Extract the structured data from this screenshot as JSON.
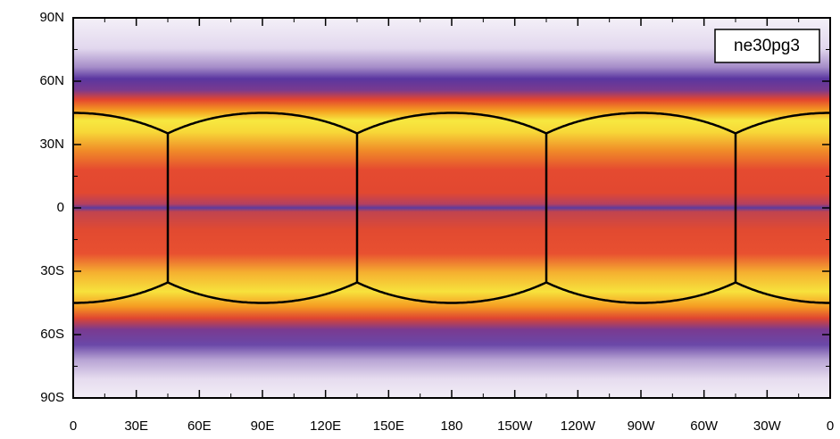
{
  "label": "ne30pg3",
  "axes": {
    "y_labels": [
      "90N",
      "60N",
      "30N",
      "0",
      "30S",
      "60S",
      "90S"
    ],
    "x_labels": [
      "0",
      "30E",
      "60E",
      "90E",
      "120E",
      "150E",
      "180",
      "150W",
      "120W",
      "90W",
      "60W",
      "30W",
      "0"
    ]
  }
}
